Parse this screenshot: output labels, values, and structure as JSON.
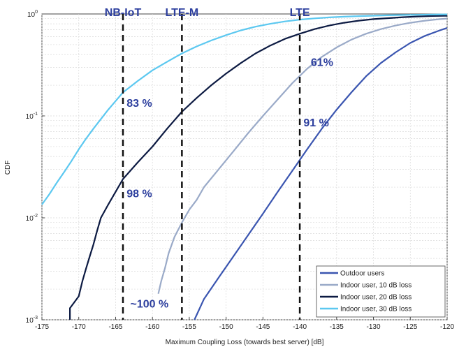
{
  "chart_data": {
    "type": "line",
    "xlabel": "Maximum Coupling Loss (towards best server) [dB]",
    "ylabel": "CDF",
    "xlim": [
      -175,
      -120
    ],
    "ylim": [
      0.001,
      1
    ],
    "yscale": "log",
    "x_ticks": [
      -175,
      -170,
      -165,
      -160,
      -155,
      -150,
      -145,
      -140,
      -135,
      -130,
      -125,
      -120
    ],
    "y_ticks": [
      {
        "value": 0.001,
        "base": "10",
        "exp": "-3"
      },
      {
        "value": 0.01,
        "base": "10",
        "exp": "-2"
      },
      {
        "value": 0.1,
        "base": "10",
        "exp": "-1"
      },
      {
        "value": 1,
        "base": "10",
        "exp": "0"
      }
    ],
    "grid": true,
    "legend_position": "bottom-right",
    "series": [
      {
        "name": "Outdoor users",
        "color": "#3a55b0",
        "x": [
          -154.3,
          -153,
          -151,
          -149,
          -147,
          -145,
          -143,
          -141,
          -139,
          -137,
          -135,
          -133,
          -131,
          -129,
          -127,
          -125,
          -123,
          -121,
          -120
        ],
        "y": [
          0.001,
          0.0016,
          0.0026,
          0.0042,
          0.0068,
          0.011,
          0.018,
          0.029,
          0.047,
          0.075,
          0.115,
          0.17,
          0.245,
          0.33,
          0.42,
          0.52,
          0.61,
          0.69,
          0.73
        ]
      },
      {
        "name": "Indoor user, 10 dB loss",
        "color": "#9aaac8",
        "x": [
          -159.2,
          -158.8,
          -158.3,
          -157.8,
          -157,
          -156,
          -155,
          -154,
          -153,
          -151,
          -149,
          -147,
          -145,
          -143,
          -141,
          -139,
          -137,
          -135,
          -133,
          -131,
          -129,
          -127,
          -125,
          -123,
          -121,
          -120
        ],
        "y": [
          0.0018,
          0.0024,
          0.0032,
          0.0045,
          0.0065,
          0.009,
          0.012,
          0.015,
          0.02,
          0.03,
          0.045,
          0.068,
          0.1,
          0.145,
          0.21,
          0.29,
          0.38,
          0.47,
          0.56,
          0.64,
          0.71,
          0.77,
          0.82,
          0.86,
          0.89,
          0.9
        ]
      },
      {
        "name": "Indoor user, 20 dB loss",
        "color": "#0c1a42",
        "x": [
          -171.2,
          -171.2,
          -170,
          -169.5,
          -169,
          -168.5,
          -168,
          -167.5,
          -167,
          -166,
          -165,
          -164,
          -162,
          -160,
          -158,
          -156,
          -154,
          -152,
          -150,
          -148,
          -146,
          -144,
          -142,
          -140,
          -138,
          -136,
          -134,
          -132,
          -130,
          -128,
          -126,
          -124,
          -122,
          -120
        ],
        "y": [
          0.001,
          0.0013,
          0.0017,
          0.0024,
          0.0032,
          0.0042,
          0.0055,
          0.0075,
          0.01,
          0.0135,
          0.018,
          0.024,
          0.035,
          0.05,
          0.075,
          0.11,
          0.15,
          0.2,
          0.26,
          0.33,
          0.41,
          0.49,
          0.57,
          0.64,
          0.71,
          0.77,
          0.82,
          0.86,
          0.89,
          0.91,
          0.93,
          0.945,
          0.955,
          0.96
        ]
      },
      {
        "name": "Indoor user, 30 dB loss",
        "color": "#5cc8f0",
        "x": [
          -175,
          -174,
          -173,
          -172,
          -171,
          -170,
          -169,
          -168,
          -167,
          -166,
          -165,
          -164,
          -162,
          -160,
          -158,
          -156,
          -154,
          -152,
          -150,
          -148,
          -146,
          -144,
          -142,
          -140,
          -138,
          -136,
          -134,
          -132,
          -130,
          -128,
          -126,
          -124,
          -122,
          -120
        ],
        "y": [
          0.0135,
          0.017,
          0.022,
          0.028,
          0.036,
          0.047,
          0.06,
          0.075,
          0.093,
          0.115,
          0.14,
          0.17,
          0.22,
          0.28,
          0.34,
          0.41,
          0.48,
          0.55,
          0.62,
          0.69,
          0.75,
          0.8,
          0.845,
          0.88,
          0.905,
          0.925,
          0.94,
          0.952,
          0.962,
          0.97,
          0.976,
          0.982,
          0.986,
          0.99
        ]
      }
    ],
    "reference_lines": [
      {
        "label": "NB-IoT",
        "x": -164
      },
      {
        "label": "LTE-M",
        "x": -156
      },
      {
        "label": "LTE",
        "x": -140
      }
    ],
    "annotations": [
      {
        "text": "83 %",
        "x": -163.5,
        "y": 0.135
      },
      {
        "text": "98 %",
        "x": -163.5,
        "y": 0.0175
      },
      {
        "text": "~100 %",
        "x": -163,
        "y": 0.00145
      },
      {
        "text": "61%",
        "x": -138.5,
        "y": 0.34
      },
      {
        "text": "91 %",
        "x": -139.5,
        "y": 0.087
      }
    ]
  }
}
